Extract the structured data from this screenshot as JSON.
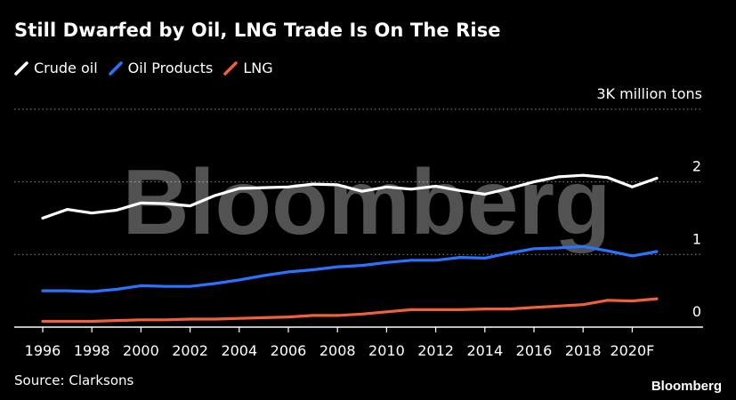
{
  "header": {
    "title": "Still Dwarfed by Oil, LNG Trade Is On The Rise"
  },
  "chart_data": {
    "type": "line",
    "title": "Still Dwarfed by Oil, LNG Trade Is On The Rise",
    "unit_label": "3K million tons",
    "x": [
      "1996",
      "1997",
      "1998",
      "1999",
      "2000",
      "2001",
      "2002",
      "2003",
      "2004",
      "2005",
      "2006",
      "2007",
      "2008",
      "2009",
      "2010",
      "2011",
      "2012",
      "2013",
      "2014",
      "2015",
      "2016",
      "2017",
      "2018",
      "2019",
      "2020",
      "2021"
    ],
    "x_tick_labels": [
      "1996",
      "1998",
      "2000",
      "2002",
      "2004",
      "2006",
      "2008",
      "2010",
      "2012",
      "2014",
      "2016",
      "2018",
      "2020F"
    ],
    "y_tick_labels": [
      "0",
      "1",
      "2"
    ],
    "ylim": [
      0,
      3
    ],
    "grid": true,
    "legend_position": "top-left",
    "series": [
      {
        "name": "Crude oil",
        "color": "#ffffff",
        "values": [
          1.5,
          1.62,
          1.57,
          1.61,
          1.71,
          1.7,
          1.67,
          1.81,
          1.91,
          1.92,
          1.93,
          1.97,
          1.96,
          1.87,
          1.93,
          1.9,
          1.94,
          1.88,
          1.83,
          1.91,
          2.0,
          2.07,
          2.09,
          2.06,
          1.93,
          2.05
        ]
      },
      {
        "name": "Oil Products",
        "color": "#2a73ff",
        "values": [
          0.5,
          0.5,
          0.49,
          0.52,
          0.57,
          0.56,
          0.56,
          0.6,
          0.65,
          0.71,
          0.76,
          0.79,
          0.83,
          0.85,
          0.89,
          0.92,
          0.92,
          0.96,
          0.95,
          1.02,
          1.08,
          1.09,
          1.11,
          1.05,
          0.98,
          1.04
        ]
      },
      {
        "name": "LNG",
        "color": "#f0603a",
        "values": [
          0.08,
          0.08,
          0.08,
          0.09,
          0.1,
          0.1,
          0.11,
          0.11,
          0.12,
          0.13,
          0.14,
          0.16,
          0.16,
          0.18,
          0.21,
          0.24,
          0.24,
          0.24,
          0.25,
          0.25,
          0.27,
          0.29,
          0.31,
          0.37,
          0.36,
          0.39
        ]
      }
    ]
  },
  "watermark": "Bloomberg",
  "footer": {
    "source": "Source: Clarksons",
    "brand": "Bloomberg"
  }
}
